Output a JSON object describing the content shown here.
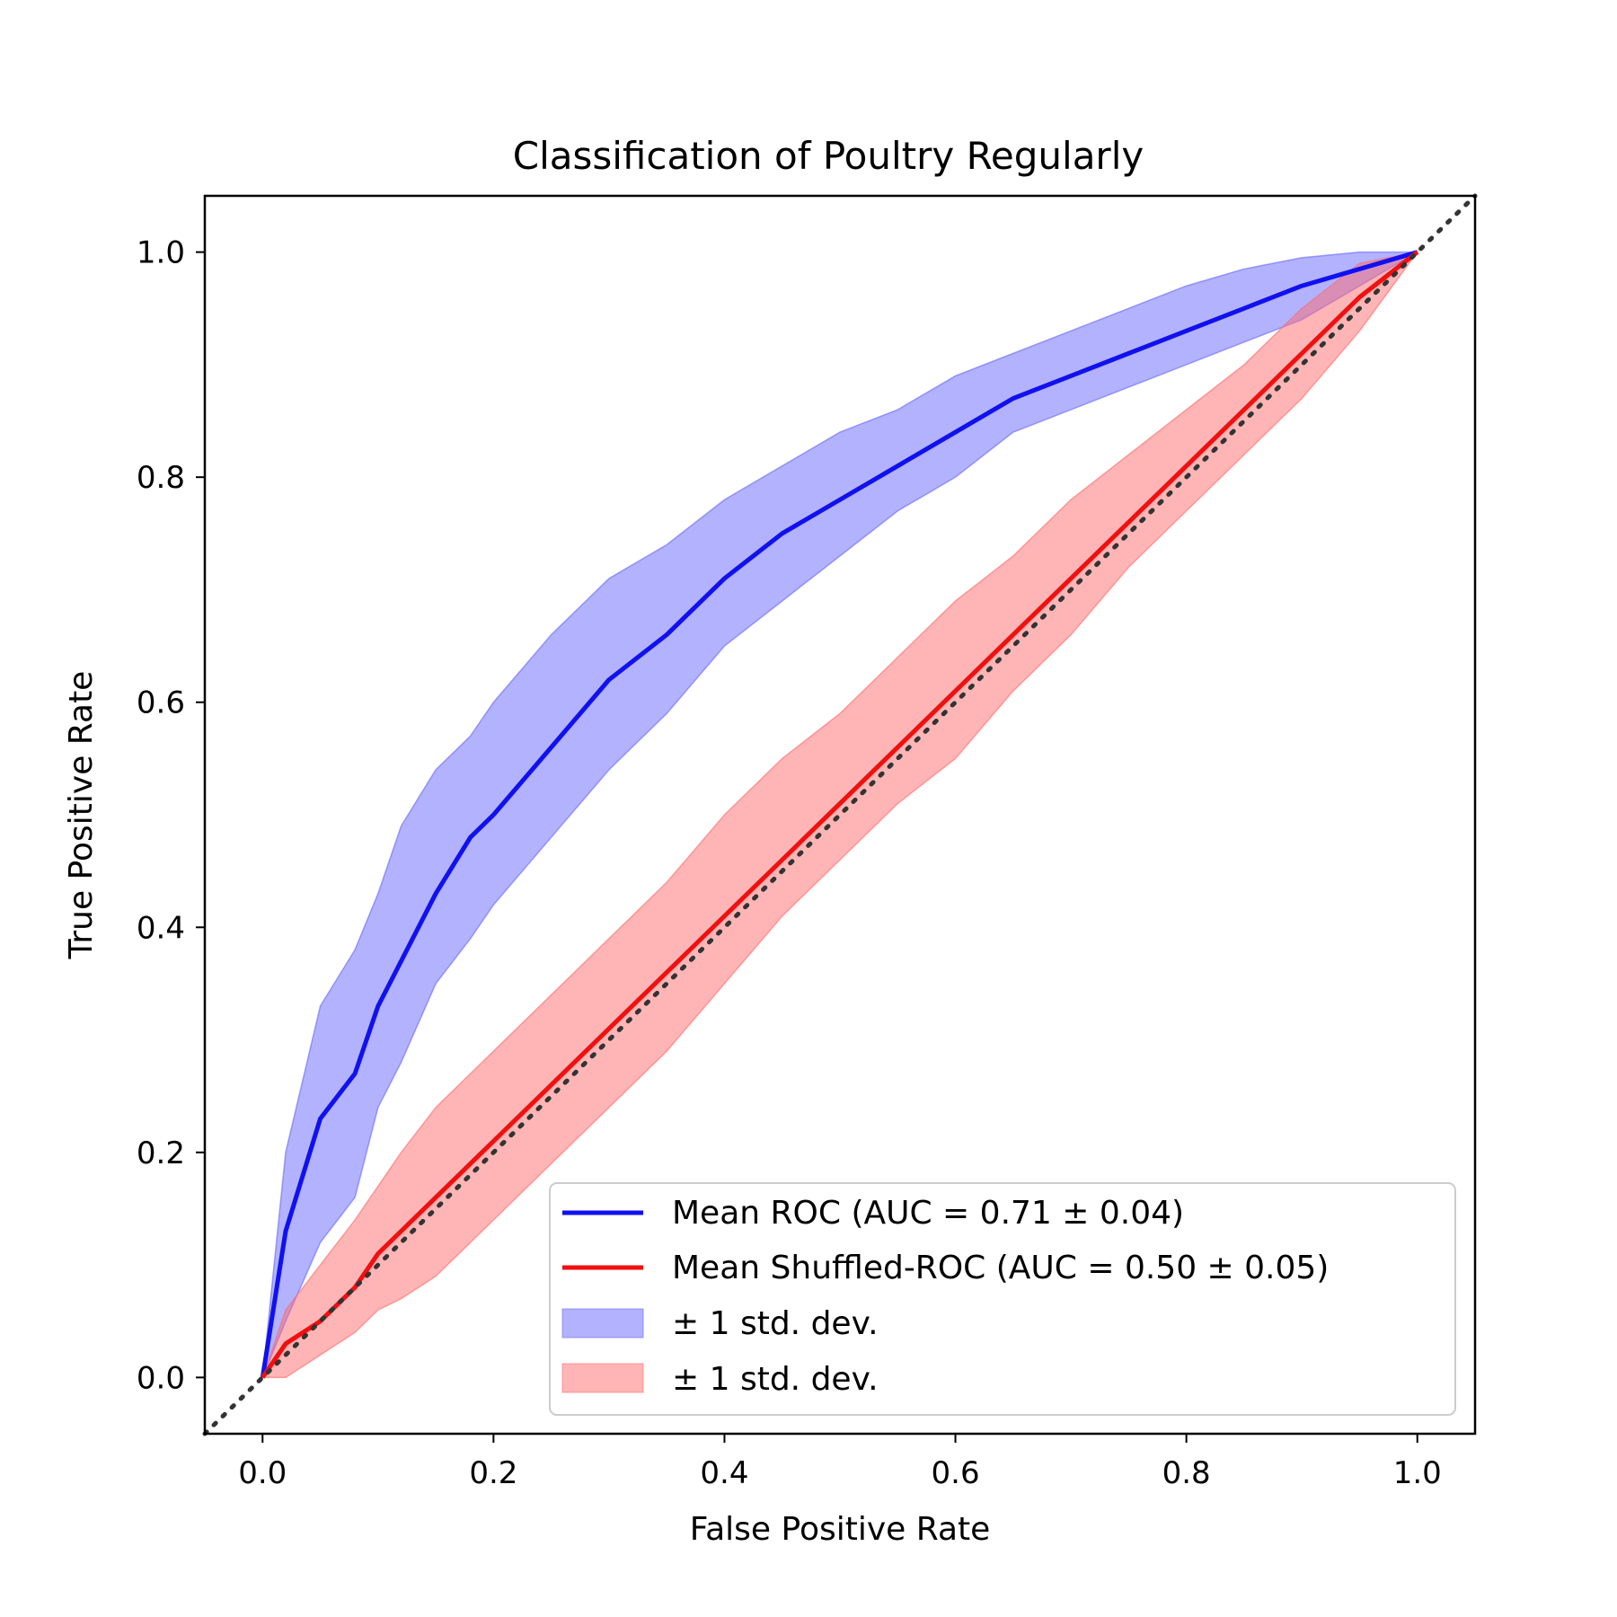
{
  "chart_data": {
    "type": "line",
    "title": "Classification of Poultry Regularly",
    "xlabel": "False Positive Rate",
    "ylabel": "True Positive Rate",
    "xlim": [
      -0.05,
      1.05
    ],
    "ylim": [
      -0.05,
      1.05
    ],
    "xticks": [
      "0.0",
      "0.2",
      "0.4",
      "0.6",
      "0.8",
      "1.0"
    ],
    "yticks": [
      "0.0",
      "0.2",
      "0.4",
      "0.6",
      "0.8",
      "1.0"
    ],
    "grid": false,
    "legend_position": "lower-right",
    "diagonal": {
      "x": [
        -0.05,
        1.05
      ],
      "y": [
        -0.05,
        1.05
      ],
      "color": "#333333",
      "style": "dotted"
    },
    "x": [
      0.0,
      0.02,
      0.05,
      0.08,
      0.1,
      0.12,
      0.15,
      0.18,
      0.2,
      0.25,
      0.3,
      0.35,
      0.4,
      0.45,
      0.5,
      0.55,
      0.6,
      0.65,
      0.7,
      0.75,
      0.8,
      0.85,
      0.9,
      0.95,
      1.0
    ],
    "series": [
      {
        "name": "Mean ROC (AUC = 0.71 ± 0.04)",
        "color": "#1010f0",
        "values": [
          0.0,
          0.13,
          0.23,
          0.27,
          0.33,
          0.37,
          0.43,
          0.48,
          0.5,
          0.56,
          0.62,
          0.66,
          0.71,
          0.75,
          0.78,
          0.81,
          0.84,
          0.87,
          0.89,
          0.91,
          0.93,
          0.95,
          0.97,
          0.985,
          1.0
        ]
      },
      {
        "name": "Mean Shuffled-ROC (AUC = 0.50 ± 0.05)",
        "color": "#f01010",
        "values": [
          0.0,
          0.03,
          0.05,
          0.08,
          0.11,
          0.13,
          0.16,
          0.19,
          0.21,
          0.26,
          0.31,
          0.36,
          0.41,
          0.46,
          0.51,
          0.56,
          0.61,
          0.66,
          0.71,
          0.76,
          0.81,
          0.86,
          0.91,
          0.96,
          1.0
        ]
      }
    ],
    "bands": [
      {
        "name": "± 1 std. dev.",
        "color": "#6666ff",
        "lower": [
          0.0,
          0.05,
          0.12,
          0.16,
          0.24,
          0.28,
          0.35,
          0.39,
          0.42,
          0.48,
          0.54,
          0.59,
          0.65,
          0.69,
          0.73,
          0.77,
          0.8,
          0.84,
          0.86,
          0.88,
          0.9,
          0.92,
          0.94,
          0.97,
          1.0
        ],
        "upper": [
          0.0,
          0.2,
          0.33,
          0.38,
          0.43,
          0.49,
          0.54,
          0.57,
          0.6,
          0.66,
          0.71,
          0.74,
          0.78,
          0.81,
          0.84,
          0.86,
          0.89,
          0.91,
          0.93,
          0.95,
          0.97,
          0.985,
          0.995,
          1.0,
          1.0
        ]
      },
      {
        "name": "± 1 std. dev.",
        "color": "#ff6b6b",
        "lower": [
          0.0,
          0.0,
          0.02,
          0.04,
          0.06,
          0.07,
          0.09,
          0.12,
          0.14,
          0.19,
          0.24,
          0.29,
          0.35,
          0.41,
          0.46,
          0.51,
          0.55,
          0.61,
          0.66,
          0.72,
          0.77,
          0.82,
          0.87,
          0.93,
          1.0
        ],
        "upper": [
          0.0,
          0.06,
          0.1,
          0.14,
          0.17,
          0.2,
          0.24,
          0.27,
          0.29,
          0.34,
          0.39,
          0.44,
          0.5,
          0.55,
          0.59,
          0.64,
          0.69,
          0.73,
          0.78,
          0.82,
          0.86,
          0.9,
          0.95,
          0.99,
          1.0
        ]
      }
    ]
  }
}
